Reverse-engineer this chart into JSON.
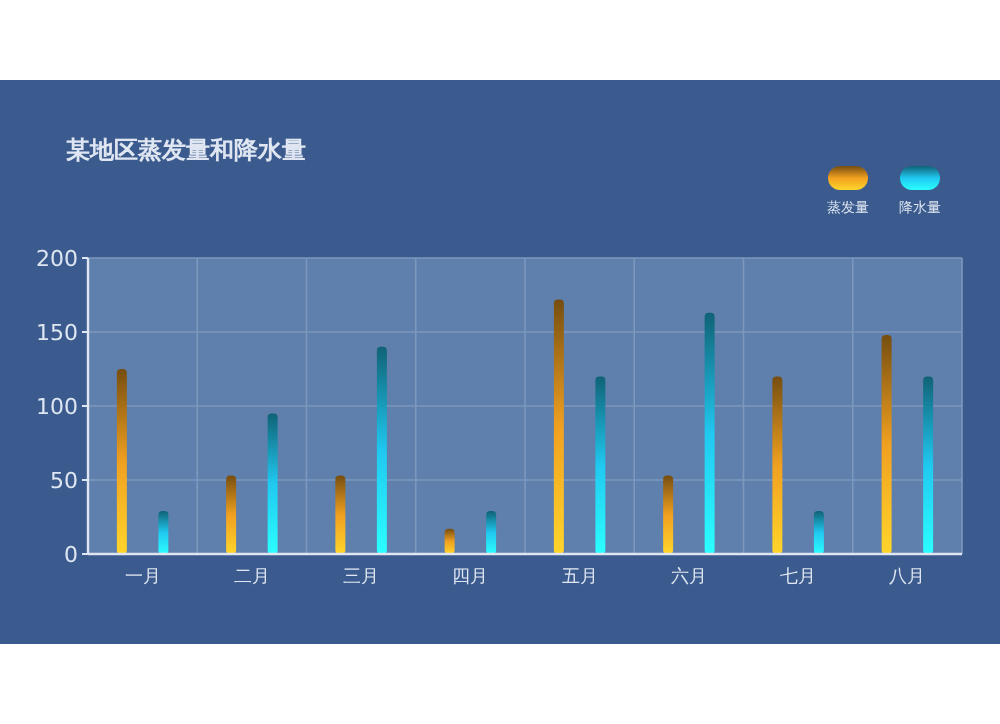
{
  "chart_data": {
    "type": "bar",
    "title": "某地区蒸发量和降水量",
    "categories": [
      "一月",
      "二月",
      "三月",
      "四月",
      "五月",
      "六月",
      "七月",
      "八月"
    ],
    "series": [
      {
        "name": "蒸发量",
        "color": "#f0a020",
        "values": [
          125,
          53,
          53,
          17,
          172,
          53,
          120,
          148
        ]
      },
      {
        "name": "降水量",
        "color": "#20c8f0",
        "values": [
          29,
          95,
          140,
          29,
          120,
          163,
          29,
          120
        ]
      }
    ],
    "ylim": [
      0,
      200
    ],
    "yticks": [
      0,
      50,
      100,
      150,
      200
    ],
    "grid": true,
    "legend": "top right"
  }
}
